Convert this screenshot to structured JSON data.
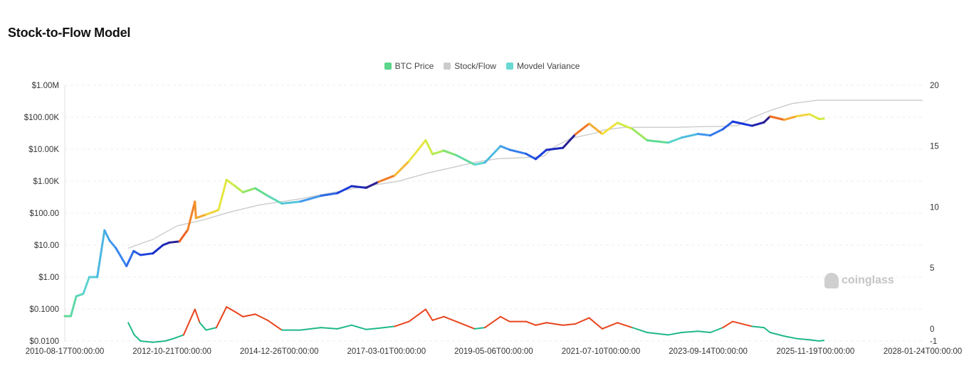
{
  "title": "Stock-to-Flow Model",
  "legend": [
    {
      "label": "BTC Price",
      "color": "#5cd68a"
    },
    {
      "label": "Stock/Flow",
      "color": "#cccccc"
    },
    {
      "label": "Movdel Variance",
      "color": "#6ad9d3"
    }
  ],
  "watermark": "coinglass",
  "chart_data": {
    "type": "line",
    "title": "Stock-to-Flow Model",
    "x_axis": {
      "type": "date",
      "ticks": [
        "2010-08-17T00:00:00",
        "2012-10-21T00:00:00",
        "2014-12-26T00:00:00",
        "2017-03-01T00:00:00",
        "2019-05-06T00:00:00",
        "2021-07-10T00:00:00",
        "2023-09-14T00:00:00",
        "2025-11-19T00:00:00",
        "2028-01-24T00:00:00"
      ],
      "range": [
        "2010-08-17",
        "2028-01-24"
      ]
    },
    "y_left": {
      "scale": "log",
      "range": [
        0.01,
        1000000
      ],
      "ticks": [
        "$0.0100",
        "$0.1000",
        "$1.00",
        "$10.00",
        "$100.00",
        "$1.00K",
        "$10.00K",
        "$100.00K",
        "$1.00M"
      ]
    },
    "y_right": {
      "scale": "linear",
      "range": [
        -1,
        20
      ],
      "ticks": [
        "20",
        "15",
        "10",
        "5",
        "0",
        "-1"
      ]
    },
    "grid": true,
    "legend_position": "top-center",
    "series": [
      {
        "name": "BTC Price",
        "axis": "left",
        "points": [
          [
            "2010-08-17",
            0.06
          ],
          [
            "2010-10-01",
            0.06
          ],
          [
            "2010-11-10",
            0.25
          ],
          [
            "2011-01-01",
            0.3
          ],
          [
            "2011-02-15",
            1.0
          ],
          [
            "2011-04-15",
            1.0
          ],
          [
            "2011-06-08",
            29
          ],
          [
            "2011-07-15",
            14
          ],
          [
            "2011-09-01",
            8
          ],
          [
            "2011-11-18",
            2.2
          ],
          [
            "2012-01-10",
            6.5
          ],
          [
            "2012-03-01",
            4.9
          ],
          [
            "2012-06-01",
            5.5
          ],
          [
            "2012-08-15",
            10
          ],
          [
            "2012-10-01",
            12
          ],
          [
            "2012-12-15",
            13
          ],
          [
            "2013-02-15",
            30
          ],
          [
            "2013-04-09",
            230
          ],
          [
            "2013-04-17",
            70
          ],
          [
            "2013-07-01",
            90
          ],
          [
            "2013-10-01",
            125
          ],
          [
            "2013-11-30",
            1100
          ],
          [
            "2014-02-01",
            700
          ],
          [
            "2014-04-01",
            450
          ],
          [
            "2014-07-01",
            600
          ],
          [
            "2014-10-01",
            350
          ],
          [
            "2015-01-14",
            200
          ],
          [
            "2015-06-01",
            230
          ],
          [
            "2015-11-01",
            350
          ],
          [
            "2016-03-01",
            420
          ],
          [
            "2016-06-15",
            700
          ],
          [
            "2016-10-01",
            620
          ],
          [
            "2017-01-01",
            950
          ],
          [
            "2017-05-01",
            1500
          ],
          [
            "2017-08-15",
            4200
          ],
          [
            "2017-12-17",
            19000
          ],
          [
            "2018-02-06",
            7000
          ],
          [
            "2018-05-01",
            9000
          ],
          [
            "2018-08-01",
            6500
          ],
          [
            "2018-12-15",
            3300
          ],
          [
            "2019-03-01",
            3800
          ],
          [
            "2019-06-26",
            12500
          ],
          [
            "2019-09-01",
            9600
          ],
          [
            "2020-01-01",
            7200
          ],
          [
            "2020-03-13",
            4900
          ],
          [
            "2020-06-01",
            9500
          ],
          [
            "2020-10-01",
            11000
          ],
          [
            "2021-01-01",
            29000
          ],
          [
            "2021-04-14",
            63000
          ],
          [
            "2021-07-20",
            30000
          ],
          [
            "2021-11-10",
            67000
          ],
          [
            "2022-03-01",
            43000
          ],
          [
            "2022-06-18",
            19000
          ],
          [
            "2022-11-21",
            16000
          ],
          [
            "2023-03-01",
            23000
          ],
          [
            "2023-07-01",
            30000
          ],
          [
            "2023-10-01",
            27000
          ],
          [
            "2024-01-01",
            42000
          ],
          [
            "2024-03-14",
            73000
          ],
          [
            "2024-08-05",
            54000
          ],
          [
            "2024-11-01",
            69000
          ],
          [
            "2024-12-17",
            106000
          ],
          [
            "2025-04-01",
            83000
          ],
          [
            "2025-07-01",
            107000
          ],
          [
            "2025-10-06",
            124000
          ],
          [
            "2025-11-01",
            110000
          ],
          [
            "2025-12-15",
            88000
          ],
          [
            "2026-01-20",
            90000
          ]
        ]
      },
      {
        "name": "Stock/Flow",
        "axis": "left",
        "points": [
          [
            "2011-12-01",
            8
          ],
          [
            "2012-03-01",
            11
          ],
          [
            "2012-06-01",
            15
          ],
          [
            "2012-09-01",
            25
          ],
          [
            "2012-11-27",
            40
          ],
          [
            "2013-06-01",
            60
          ],
          [
            "2014-01-01",
            110
          ],
          [
            "2014-08-01",
            180
          ],
          [
            "2015-06-01",
            280
          ],
          [
            "2016-07-08",
            600
          ],
          [
            "2016-12-01",
            760
          ],
          [
            "2017-06-01",
            1000
          ],
          [
            "2018-01-01",
            1800
          ],
          [
            "2018-06-01",
            2500
          ],
          [
            "2019-01-01",
            4000
          ],
          [
            "2019-06-01",
            5000
          ],
          [
            "2020-01-01",
            5500
          ],
          [
            "2020-05-11",
            6000
          ],
          [
            "2020-08-01",
            12000
          ],
          [
            "2020-12-01",
            22000
          ],
          [
            "2021-06-01",
            32000
          ],
          [
            "2021-08-01",
            40000
          ],
          [
            "2022-01-01",
            48000
          ],
          [
            "2023-01-01",
            48000
          ],
          [
            "2023-06-01",
            50000
          ],
          [
            "2024-01-01",
            52000
          ],
          [
            "2024-04-20",
            55000
          ],
          [
            "2024-08-01",
            95000
          ],
          [
            "2025-01-01",
            170000
          ],
          [
            "2025-06-01",
            270000
          ],
          [
            "2025-12-01",
            340000
          ],
          [
            "2026-06-01",
            340000
          ],
          [
            "2028-01-24",
            340000
          ]
        ]
      },
      {
        "name": "Movdel Variance",
        "axis": "right",
        "points": [
          [
            "2011-12-01",
            0.5
          ],
          [
            "2012-01-15",
            -0.5
          ],
          [
            "2012-03-01",
            -1.0
          ],
          [
            "2012-06-01",
            -1.1
          ],
          [
            "2012-09-01",
            -1.0
          ],
          [
            "2012-11-01",
            -0.8
          ],
          [
            "2013-01-15",
            -0.5
          ],
          [
            "2013-04-09",
            1.6
          ],
          [
            "2013-05-15",
            0.5
          ],
          [
            "2013-07-01",
            -0.1
          ],
          [
            "2013-09-15",
            0.1
          ],
          [
            "2013-11-30",
            1.8
          ],
          [
            "2014-02-01",
            1.4
          ],
          [
            "2014-04-01",
            1.0
          ],
          [
            "2014-07-01",
            1.2
          ],
          [
            "2014-10-01",
            0.7
          ],
          [
            "2015-01-14",
            -0.1
          ],
          [
            "2015-06-01",
            -0.1
          ],
          [
            "2015-11-01",
            0.1
          ],
          [
            "2016-03-01",
            0.0
          ],
          [
            "2016-06-15",
            0.3
          ],
          [
            "2016-10-01",
            -0.05
          ],
          [
            "2017-01-01",
            0.05
          ],
          [
            "2017-05-01",
            0.2
          ],
          [
            "2017-08-15",
            0.6
          ],
          [
            "2017-12-17",
            1.6
          ],
          [
            "2018-02-06",
            0.7
          ],
          [
            "2018-05-01",
            1.0
          ],
          [
            "2018-08-01",
            0.6
          ],
          [
            "2018-12-15",
            0.0
          ],
          [
            "2019-03-01",
            0.1
          ],
          [
            "2019-06-26",
            1.0
          ],
          [
            "2019-09-01",
            0.6
          ],
          [
            "2020-01-01",
            0.6
          ],
          [
            "2020-03-13",
            0.3
          ],
          [
            "2020-06-01",
            0.5
          ],
          [
            "2020-10-01",
            0.3
          ],
          [
            "2021-01-01",
            0.4
          ],
          [
            "2021-04-14",
            0.9
          ],
          [
            "2021-07-20",
            0.0
          ],
          [
            "2021-11-10",
            0.5
          ],
          [
            "2022-03-01",
            0.1
          ],
          [
            "2022-06-18",
            -0.3
          ],
          [
            "2022-11-21",
            -0.5
          ],
          [
            "2023-03-01",
            -0.3
          ],
          [
            "2023-07-01",
            -0.2
          ],
          [
            "2023-10-01",
            -0.3
          ],
          [
            "2024-01-01",
            0.1
          ],
          [
            "2024-03-14",
            0.6
          ],
          [
            "2024-08-05",
            0.2
          ],
          [
            "2024-11-01",
            0.1
          ],
          [
            "2024-12-17",
            -0.3
          ],
          [
            "2025-04-01",
            -0.6
          ],
          [
            "2025-07-01",
            -0.8
          ],
          [
            "2025-10-06",
            -0.9
          ],
          [
            "2025-12-15",
            -1.0
          ],
          [
            "2026-01-20",
            -0.95
          ]
        ]
      }
    ]
  }
}
